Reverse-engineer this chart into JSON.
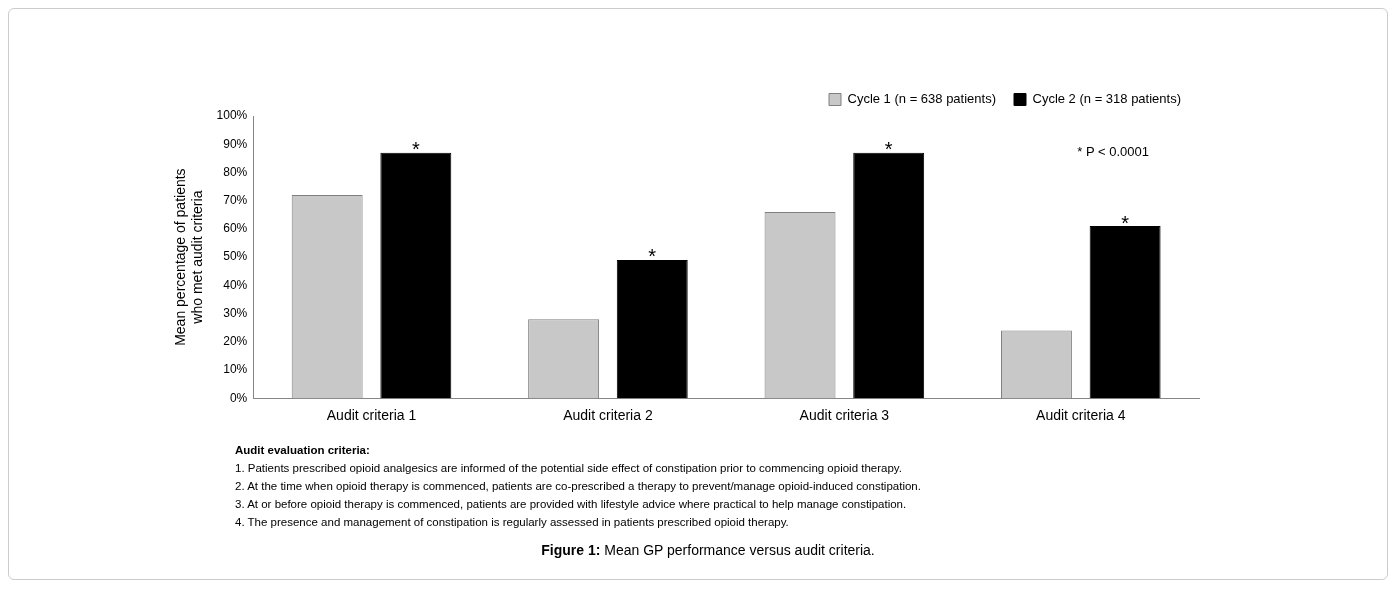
{
  "chart_data": {
    "type": "bar",
    "ylabel": "Mean percentage of patients\nwho met audit criteria",
    "categories": [
      "Audit criteria 1",
      "Audit criteria 2",
      "Audit criteria 3",
      "Audit criteria 4"
    ],
    "series": [
      {
        "name": "Cycle 1 (n = 638 patients)",
        "color": "#c8c8c8",
        "values": [
          72,
          28,
          66,
          24
        ]
      },
      {
        "name": "Cycle 2 (n = 318 patients)",
        "color": "#000000",
        "values": [
          87,
          49,
          87,
          61
        ]
      }
    ],
    "ylim": [
      0,
      100
    ],
    "yticks": [
      {
        "value": 0,
        "label": "0%"
      },
      {
        "value": 10,
        "label": "10%"
      },
      {
        "value": 20,
        "label": "20%"
      },
      {
        "value": 30,
        "label": "30%"
      },
      {
        "value": 40,
        "label": "40%"
      },
      {
        "value": 50,
        "label": "50%"
      },
      {
        "value": 60,
        "label": "60%"
      },
      {
        "value": 70,
        "label": "70%"
      },
      {
        "value": 80,
        "label": "80%"
      },
      {
        "value": 90,
        "label": "90%"
      },
      {
        "value": 100,
        "label": "100%"
      }
    ],
    "grid": false,
    "legend": "top right",
    "annotations": [
      "*",
      "*",
      "*",
      "*",
      "* P < 0.0001",
      "Audit evaluation criteria:",
      "1. Patients prescribed opioid analgesics are informed of the potential side effect of constipation prior to commencing opioid therapy.",
      "2. At the time when opioid therapy is commenced, patients are co-prescribed a therapy to prevent/manage opioid-induced constipation.",
      "3. At or before opioid therapy is commenced, patients are provided with lifestyle advice where practical to help manage constipation.",
      "4. The presence and management of constipation is regularly assessed in patients prescribed opioid therapy.",
      "Figure 1: Mean GP performance versus audit criteria."
    ]
  }
}
